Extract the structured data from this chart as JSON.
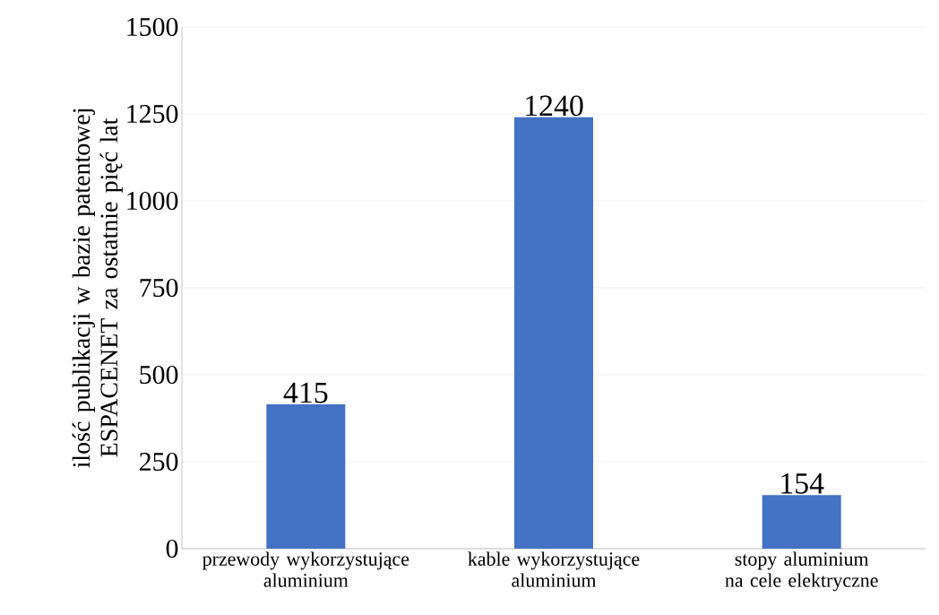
{
  "chart_data": {
    "type": "bar",
    "ylabel": "ilość publikacji w bazie patentowej ESPACENET za ostatnie pięć lat",
    "categories": [
      "przewody wykorzystujące aluminium",
      "kable wykorzystujące aluminium",
      "stopy aluminium na cele elektryczne"
    ],
    "values": [
      415,
      1240,
      154
    ],
    "color": "#4472c4",
    "data_labels": true,
    "ylim": [
      0,
      1500
    ],
    "yticks": [
      0,
      250,
      500,
      750,
      1000,
      1250,
      1500
    ],
    "grid": "y"
  }
}
